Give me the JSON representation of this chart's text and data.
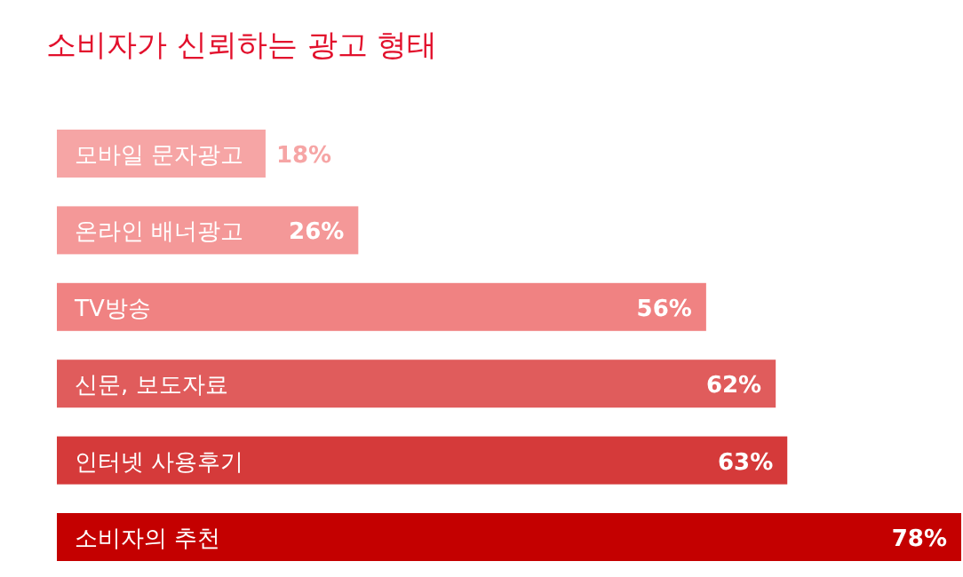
{
  "chart_data": {
    "type": "bar",
    "orientation": "horizontal",
    "title": "소비자가 신뢰하는 광고 형태",
    "categories": [
      "모바일 문자광고",
      "온라인 배너광고",
      "TV방송",
      "신문, 보도자료",
      "인터넷 사용후기",
      "소비자의 추천"
    ],
    "values": [
      18,
      26,
      56,
      62,
      63,
      78
    ],
    "colors": [
      "#f6a5a5",
      "#f49898",
      "#f08282",
      "#e05c5c",
      "#d53a3a",
      "#c40000"
    ],
    "value_labels": [
      "18%",
      "26%",
      "56%",
      "62%",
      "63%",
      "78%"
    ]
  }
}
